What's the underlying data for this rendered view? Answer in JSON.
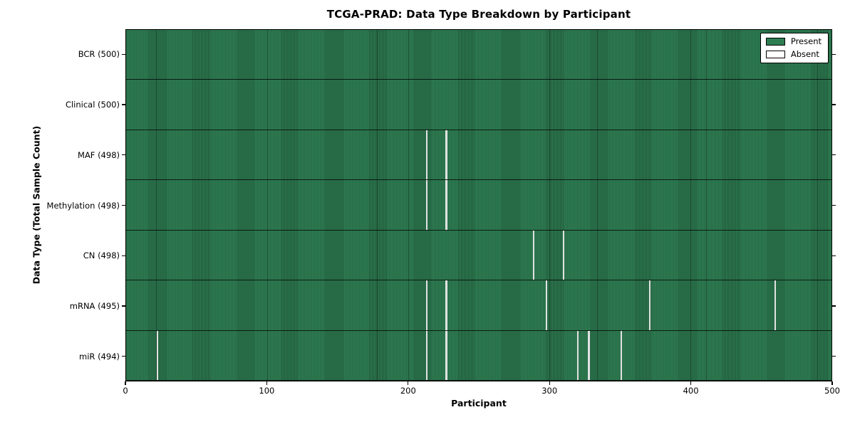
{
  "chart_data": {
    "type": "heatmap",
    "title": "TCGA-PRAD: Data Type Breakdown by Participant",
    "xlabel": "Participant",
    "ylabel": "Data Type (Total Sample Count)",
    "x_range": [
      0,
      500
    ],
    "x_ticks": [
      0,
      100,
      200,
      300,
      400,
      500
    ],
    "grid": false,
    "legend_position": "upper right",
    "legend": [
      {
        "name": "present",
        "label": "Present",
        "color": "#2e7d52"
      },
      {
        "name": "absent",
        "label": "Absent",
        "color": "#ffffff"
      }
    ],
    "colors": {
      "present_fill": "#2e7d52",
      "present_stripe": "#1d5636",
      "absent_line": "#e2e2e2",
      "frame": "#000000",
      "background": "#ffffff"
    },
    "rows": [
      {
        "name": "BCR",
        "label": "BCR (500)",
        "present_count": 500,
        "absent_participants": []
      },
      {
        "name": "Clinical",
        "label": "Clinical (500)",
        "present_count": 500,
        "absent_participants": []
      },
      {
        "name": "MAF",
        "label": "MAF (498)",
        "present_count": 498,
        "absent_participants": [
          213,
          227
        ]
      },
      {
        "name": "Methylation",
        "label": "Methylation (498)",
        "present_count": 498,
        "absent_participants": [
          213,
          227
        ]
      },
      {
        "name": "CN",
        "label": "CN (498)",
        "present_count": 498,
        "absent_participants": [
          289,
          310
        ]
      },
      {
        "name": "mRNA",
        "label": "mRNA (495)",
        "present_count": 495,
        "absent_participants": [
          213,
          227,
          298,
          371,
          460
        ]
      },
      {
        "name": "miR",
        "label": "miR (494)",
        "present_count": 494,
        "absent_participants": [
          22,
          213,
          227,
          320,
          328,
          351
        ]
      }
    ],
    "faint_vertical_lines_at": [
      21,
      100,
      178,
      200,
      300,
      334,
      400,
      411,
      490
    ]
  }
}
